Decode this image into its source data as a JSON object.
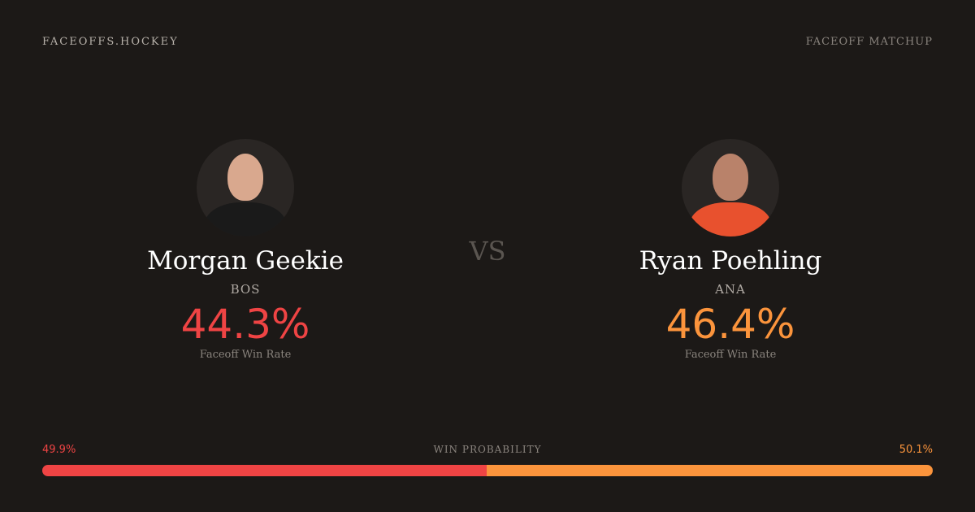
{
  "header": {
    "brand": "FACEOFFS.HOCKEY",
    "tag": "FACEOFF MATCHUP"
  },
  "colors": {
    "background": "#1c1917",
    "player1": "#ef4444",
    "player2": "#fb943c"
  },
  "players": [
    {
      "name": "Morgan Geekie",
      "team": "BOS",
      "rate": "44.3%",
      "rate_label": "Faceoff Win Rate",
      "jersey": "#1a1a1a"
    },
    {
      "name": "Ryan Poehling",
      "team": "ANA",
      "rate": "46.4%",
      "rate_label": "Faceoff Win Rate",
      "jersey": "#e8512e"
    }
  ],
  "vs": "VS",
  "win_probability": {
    "label": "WIN PROBABILITY",
    "left": "49.9%",
    "right": "50.1%",
    "left_value": 49.9,
    "right_value": 50.1
  }
}
